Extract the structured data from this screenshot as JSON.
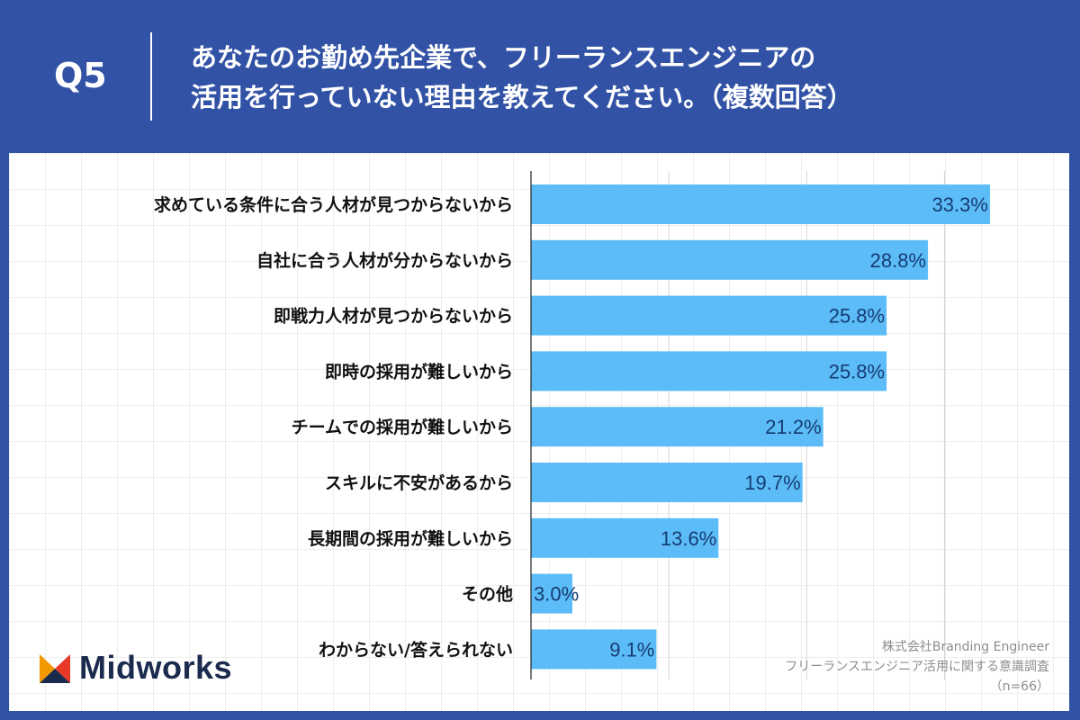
{
  "header": {
    "question": "Q5",
    "title_line1": "あなたのお勤め先企業で、フリーランスエンジニアの",
    "title_line2": "活用を行っていない理由を教えてください。（複数回答）"
  },
  "chart_data": {
    "type": "bar",
    "orientation": "horizontal",
    "categories": [
      "求めている条件に合う人材が見つからないから",
      "自社に合う人材が分からないから",
      "即戦力人材が見つからないから",
      "即時の採用が難しいから",
      "チームでの採用が難しいから",
      "スキルに不安があるから",
      "長期間の採用が難しいから",
      "その他",
      "わからない/答えられない"
    ],
    "values": [
      33.3,
      28.8,
      25.8,
      25.8,
      21.2,
      19.7,
      13.6,
      3.0,
      9.1
    ],
    "value_labels": [
      "33.3%",
      "28.8%",
      "25.8%",
      "25.8%",
      "21.2%",
      "19.7%",
      "13.6%",
      "3.0%",
      "9.1%"
    ],
    "xlim": [
      0,
      35
    ],
    "grid": true,
    "bar_color": "#5bbcf7",
    "label_color": "#173c73"
  },
  "logo": {
    "text": "Midworks",
    "icon": "midworks-m-logo-icon",
    "colors": [
      "#e83828",
      "#f39800",
      "#1b2b4d"
    ]
  },
  "source": {
    "line1": "株式会社Branding Engineer",
    "line2": "フリーランスエンジニア活用に関する意識調査",
    "line3": "（n=66）"
  }
}
